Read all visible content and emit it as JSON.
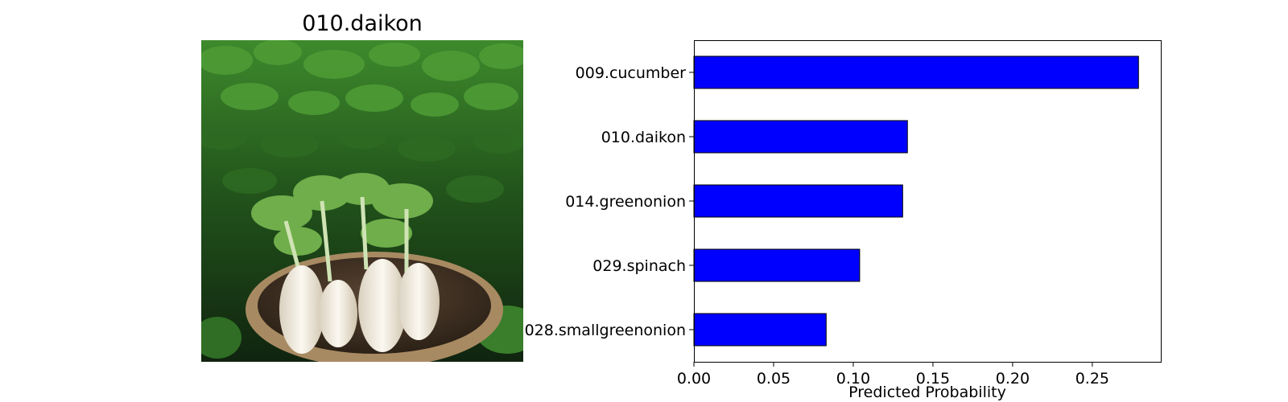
{
  "photo_panel": {
    "title": "010.daikon"
  },
  "chart_data": {
    "type": "bar",
    "orientation": "horizontal",
    "categories": [
      "009.cucumber",
      "010.daikon",
      "014.greenonion",
      "029.spinach",
      "028.smallgreenonion"
    ],
    "values": [
      0.279,
      0.134,
      0.131,
      0.104,
      0.083
    ],
    "xlabel": "Predicted Probability",
    "ylabel": "",
    "xlim": [
      0,
      0.293
    ],
    "xticks": [
      0.0,
      0.05,
      0.1,
      0.15,
      0.2,
      0.25
    ],
    "xtick_labels": [
      "0.00",
      "0.05",
      "0.10",
      "0.15",
      "0.20",
      "0.25"
    ],
    "bar_color": "#0000ff",
    "bar_edge_color": "#000000",
    "grid": false,
    "legend": "none"
  }
}
